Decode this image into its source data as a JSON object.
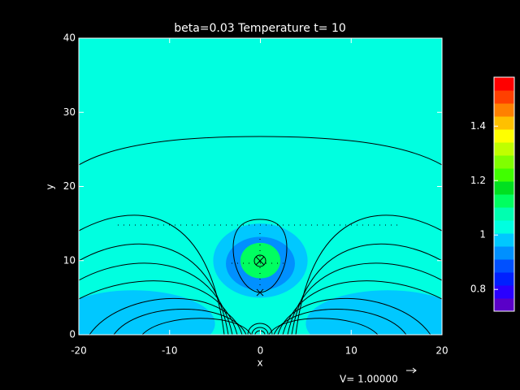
{
  "chart_data": {
    "type": "contour",
    "title": "beta=0.03 Temperature t= 10",
    "x_label": "x",
    "y_label": "y",
    "xlim": [
      -20,
      20
    ],
    "ylim": [
      0,
      40
    ],
    "xticks": [
      -20,
      -10,
      0,
      10,
      20
    ],
    "yticks": [
      0,
      10,
      20,
      30,
      40
    ],
    "background_value": 1.03,
    "regions": [
      {
        "x": -14,
        "y": 1.5,
        "rx": 9,
        "ry": 4.5,
        "value": 0.97
      },
      {
        "x": 14,
        "y": 1.5,
        "rx": 9,
        "ry": 4.5,
        "value": 0.97
      },
      {
        "x": 0,
        "y": 10,
        "rx": 5.2,
        "ry": 5,
        "value": 0.97
      },
      {
        "x": 0,
        "y": 9.6,
        "rx": 3.8,
        "ry": 3.6,
        "value": 0.93
      },
      {
        "x": 0,
        "y": 10,
        "rx": 2.2,
        "ry": 2.4,
        "value": 1.15
      }
    ],
    "colorbar": {
      "clim": [
        0.72,
        1.58
      ],
      "ticks": [
        0.8,
        1.0,
        1.2,
        1.4
      ],
      "colors": [
        "#5a00c8",
        "#2a00ff",
        "#0020ff",
        "#0050ff",
        "#0090ff",
        "#00c8ff",
        "#00ffe0",
        "#00ffb0",
        "#00ff60",
        "#00e020",
        "#40ff00",
        "#80ff00",
        "#c0ff00",
        "#ffff00",
        "#ffc000",
        "#ff8000",
        "#ff4000",
        "#ff0000"
      ]
    },
    "vector_label": "V= 1.00000"
  }
}
